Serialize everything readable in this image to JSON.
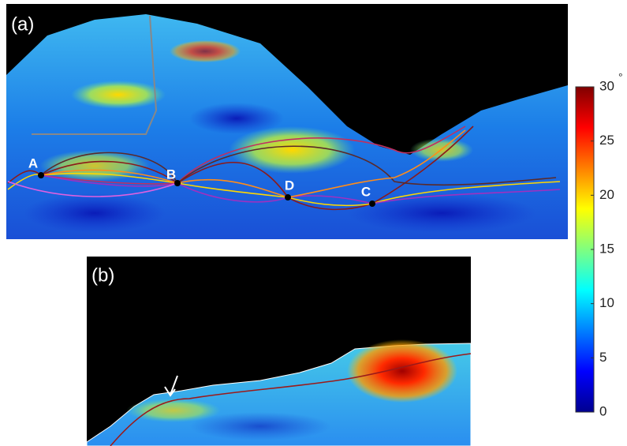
{
  "panels": [
    {
      "label": "(a)",
      "points": [
        "A",
        "B",
        "D",
        "C"
      ]
    },
    {
      "label": "(b)"
    }
  ],
  "colorbar": {
    "unit": "°",
    "lim": [
      0,
      30
    ],
    "ticks": [
      0,
      5,
      10,
      15,
      20,
      25,
      30
    ]
  }
}
